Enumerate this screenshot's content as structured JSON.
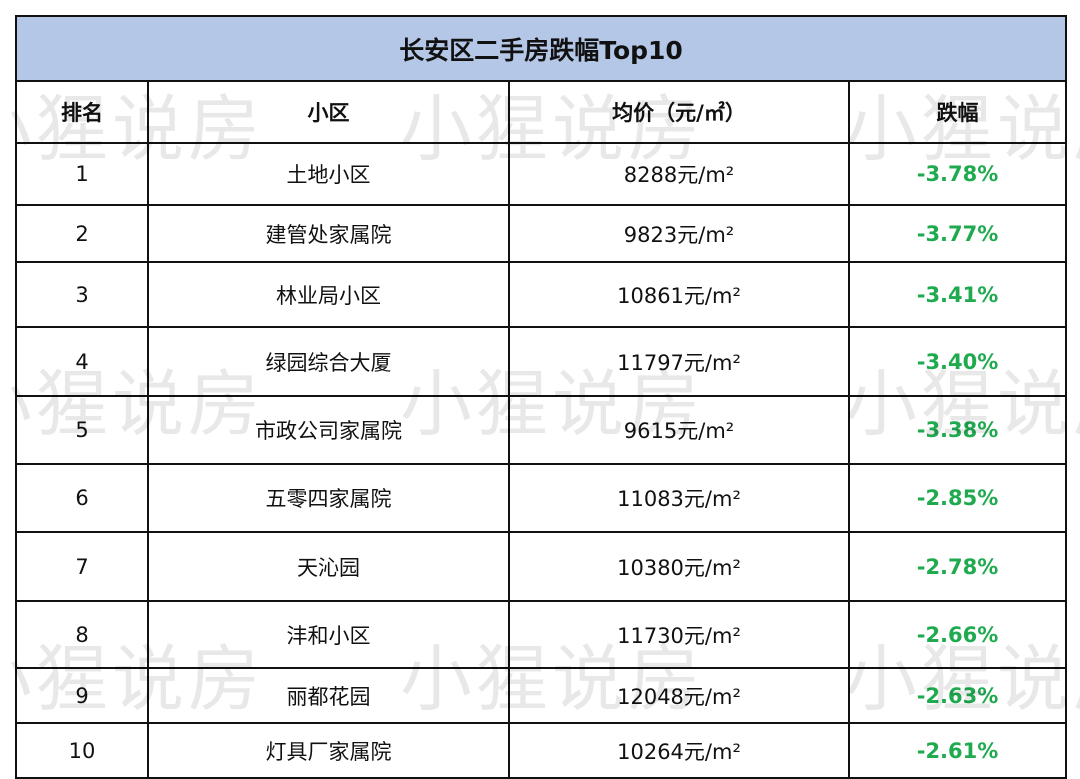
{
  "title": "长安区二手房跌幅Top10",
  "headers": [
    "排名",
    "小区",
    "均价（元/㎡）",
    "跌幅"
  ],
  "rows": [
    {
      "rank": "1",
      "name": "土地小区",
      "price": "8288元/m²",
      "change": "-3.78%"
    },
    {
      "rank": "2",
      "name": "建管处家属院",
      "price": "9823元/m²",
      "change": "-3.77%"
    },
    {
      "rank": "3",
      "name": "林业局小区",
      "price": "10861元/m²",
      "change": "-3.41%"
    },
    {
      "rank": "4",
      "name": "绿园综合大厦",
      "price": "11797元/m²",
      "change": "-3.40%"
    },
    {
      "rank": "5",
      "name": "市政公司家属院",
      "price": "9615元/m²",
      "change": "-3.38%"
    },
    {
      "rank": "6",
      "name": "五零四家属院",
      "price": "11083元/m²",
      "change": "-2.85%"
    },
    {
      "rank": "7",
      "name": "天沁园",
      "price": "10380元/m²",
      "change": "-2.78%"
    },
    {
      "rank": "8",
      "name": "沣和小区",
      "price": "11730元/m²",
      "change": "-2.66%"
    },
    {
      "rank": "9",
      "name": "丽都花园",
      "price": "12048元/m²",
      "change": "-2.63%"
    },
    {
      "rank": "10",
      "name": "灯具厂家属院",
      "price": "10264元/m²",
      "change": "-2.61%"
    }
  ],
  "watermark": "小猩说房",
  "colors": {
    "title_bg": "#b4c7e7",
    "decline": "#1faa4f"
  }
}
